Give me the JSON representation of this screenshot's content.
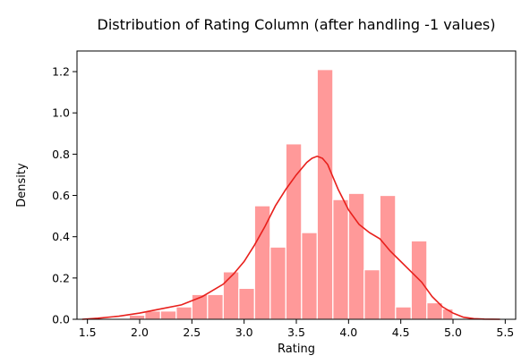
{
  "chart_data": {
    "type": "bar",
    "title": "Distribution of Rating Column (after handling -1 values)",
    "xlabel": "Rating",
    "ylabel": "Density",
    "xlim": [
      1.4,
      5.6
    ],
    "ylim": [
      0.0,
      1.3
    ],
    "xticks": [
      "1.5",
      "2.0",
      "2.5",
      "3.0",
      "3.5",
      "4.0",
      "4.5",
      "5.0",
      "5.5"
    ],
    "xtick_values": [
      1.5,
      2.0,
      2.5,
      3.0,
      3.5,
      4.0,
      4.5,
      5.0,
      5.5
    ],
    "yticks": [
      "0.0",
      "0.2",
      "0.4",
      "0.6",
      "0.8",
      "1.0",
      "1.2"
    ],
    "ytick_values": [
      0.0,
      0.2,
      0.4,
      0.6,
      0.8,
      1.0,
      1.2
    ],
    "grid": false,
    "bar_color": "#ff9999",
    "line_color": "#e8201c",
    "histogram": {
      "bin_edges": [
        1.9,
        2.05,
        2.2,
        2.35,
        2.5,
        2.65,
        2.8,
        2.95,
        3.1,
        3.25,
        3.4,
        3.55,
        3.7,
        3.85,
        4.0,
        4.15,
        4.3,
        4.45,
        4.6,
        4.75,
        4.9,
        5.0
      ],
      "values": [
        0.02,
        0.04,
        0.04,
        0.06,
        0.12,
        0.12,
        0.23,
        0.15,
        0.55,
        0.35,
        0.85,
        0.42,
        1.21,
        0.58,
        0.61,
        0.24,
        0.6,
        0.06,
        0.38,
        0.08,
        0.05
      ]
    },
    "kde": {
      "x": [
        1.45,
        1.6,
        1.8,
        2.0,
        2.2,
        2.4,
        2.6,
        2.8,
        2.9,
        3.0,
        3.1,
        3.2,
        3.3,
        3.4,
        3.5,
        3.6,
        3.65,
        3.7,
        3.75,
        3.8,
        3.85,
        3.9,
        4.0,
        4.1,
        4.2,
        4.3,
        4.4,
        4.5,
        4.6,
        4.7,
        4.8,
        4.9,
        5.0,
        5.1,
        5.2,
        5.3,
        5.45
      ],
      "y": [
        0.0,
        0.005,
        0.015,
        0.03,
        0.05,
        0.07,
        0.11,
        0.17,
        0.22,
        0.28,
        0.36,
        0.45,
        0.55,
        0.63,
        0.7,
        0.76,
        0.78,
        0.79,
        0.78,
        0.75,
        0.69,
        0.63,
        0.53,
        0.46,
        0.42,
        0.39,
        0.33,
        0.28,
        0.23,
        0.18,
        0.11,
        0.06,
        0.03,
        0.01,
        0.003,
        0.001,
        0.0
      ]
    }
  }
}
